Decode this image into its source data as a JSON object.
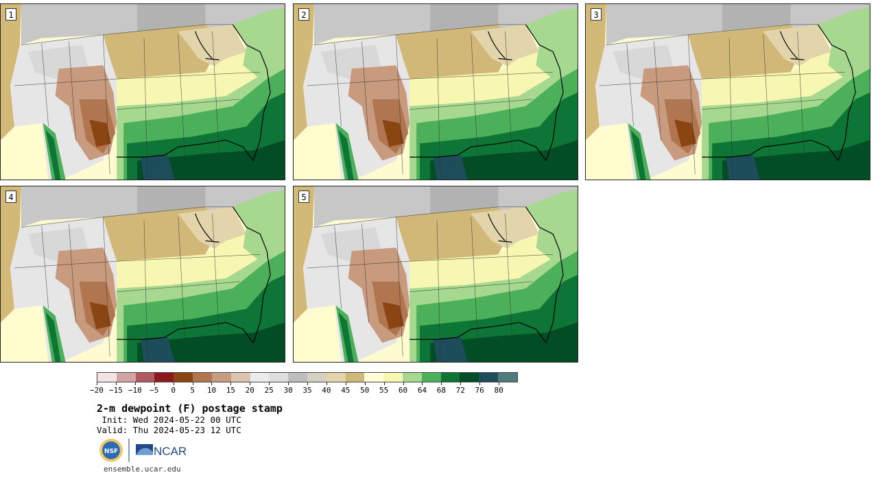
{
  "panels": [
    {
      "number": "1"
    },
    {
      "number": "2"
    },
    {
      "number": "3"
    },
    {
      "number": "4"
    },
    {
      "number": "5"
    }
  ],
  "colorbar": {
    "colors": [
      "#f3e4e4",
      "#d4a3a3",
      "#b05c5e",
      "#8c1a1d",
      "#8b4513",
      "#b07650",
      "#c89c80",
      "#dfc3b2",
      "#ececec",
      "#dedede",
      "#bdbdbd",
      "#d6d0c3",
      "#e3d4ad",
      "#cfb679",
      "#fffdd8",
      "#f7f7b2",
      "#a6d98f",
      "#4caf5a",
      "#0d7535",
      "#034d26",
      "#1d4c5b",
      "#4f7b7f"
    ],
    "ticks": [
      "−20",
      "−15",
      "−10",
      "−5",
      "0",
      "5",
      "10",
      "15",
      "20",
      "25",
      "30",
      "35",
      "40",
      "45",
      "50",
      "55",
      "60",
      "64",
      "68",
      "72",
      "76",
      "80"
    ]
  },
  "title": "2-m dewpoint (F) postage stamp",
  "init": " Init: Wed 2024-05-22 00 UTC",
  "valid": "Valid: Thu 2024-05-23 12 UTC",
  "logo": {
    "nsf": "NSF",
    "ncar": "NCAR"
  },
  "url": "ensemble.ucar.edu"
}
